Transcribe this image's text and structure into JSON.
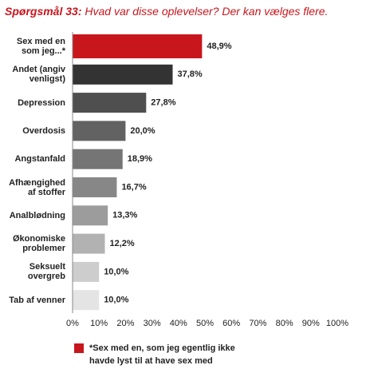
{
  "chart_data": {
    "type": "hbar",
    "title": "Spørgsmål 33:",
    "subtitle": "Hvad var disse oplevelser? Der kan vælges flere.",
    "categories": [
      "Sex med en\nsom jeg...*",
      "Andet (angiv\nvenligst)",
      "Depression",
      "Overdosis",
      "Angstanfald",
      "Afhængighed\naf stoffer",
      "Analblødning",
      "Økonomiske\nproblemer",
      "Seksuelt\novergreb",
      "Tab af venner"
    ],
    "values": [
      48.9,
      37.8,
      27.8,
      20.0,
      18.9,
      16.7,
      13.3,
      12.2,
      10.0,
      10.0
    ],
    "value_labels": [
      "48,9%",
      "37,8%",
      "27,8%",
      "20,0%",
      "18,9%",
      "16,7%",
      "13,3%",
      "12,2%",
      "10,0%",
      "10,0%"
    ],
    "colors": [
      "#c8161d",
      "#333333",
      "#4f4f4f",
      "#626262",
      "#757575",
      "#878787",
      "#9c9c9c",
      "#b2b2b2",
      "#cdcdcd",
      "#e4e4e4"
    ],
    "xlim": [
      0,
      100
    ],
    "xticks": [
      {
        "value": 0,
        "label": "0%"
      },
      {
        "value": 10,
        "label": "10%"
      },
      {
        "value": 20,
        "label": "20%"
      },
      {
        "value": 30,
        "label": "30%"
      },
      {
        "value": 40,
        "label": "40%"
      },
      {
        "value": 50,
        "label": "50%"
      },
      {
        "value": 60,
        "label": "60%"
      },
      {
        "value": 70,
        "label": "70%"
      },
      {
        "value": 80,
        "label": "80%"
      },
      {
        "value": 90,
        "label": "90%"
      },
      {
        "value": 100,
        "label": "100%"
      }
    ],
    "grid": false,
    "legend": {
      "color": "#c8161d",
      "text": "*Sex med en, som jeg egentlig ikke\nhavde lyst til at have sex med"
    }
  }
}
